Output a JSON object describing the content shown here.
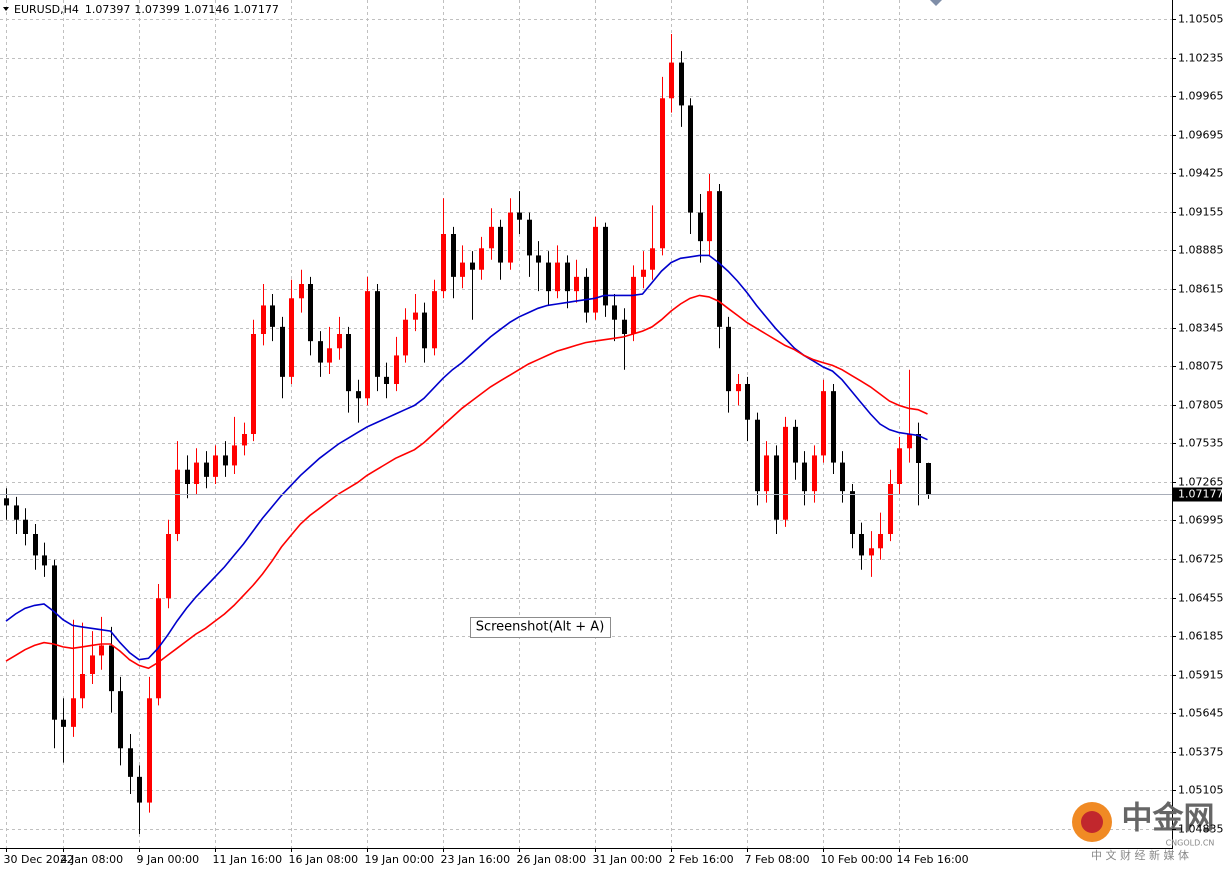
{
  "chart_data": {
    "type": "candlestick",
    "symbol": "EURUSD,H4",
    "categories": [
      "30 Dec 2022",
      null,
      null,
      null,
      null,
      null,
      "4 Jan 08:00",
      null,
      null,
      null,
      null,
      null,
      null,
      null,
      "9 Jan 00:00",
      null,
      null,
      null,
      null,
      null,
      null,
      null,
      "11 Jan 16:00",
      null,
      null,
      null,
      null,
      null,
      null,
      null,
      "16 Jan 08:00",
      null,
      null,
      null,
      null,
      null,
      null,
      null,
      "19 Jan 00:00",
      null,
      null,
      null,
      null,
      null,
      null,
      null,
      "23 Jan 16:00",
      null,
      null,
      null,
      null,
      null,
      null,
      null,
      "26 Jan 08:00",
      null,
      null,
      null,
      null,
      null,
      null,
      null,
      "31 Jan 00:00",
      null,
      null,
      null,
      null,
      null,
      null,
      null,
      "2 Feb 16:00",
      null,
      null,
      null,
      null,
      null,
      null,
      null,
      "7 Feb 08:00",
      null,
      null,
      null,
      null,
      null,
      null,
      null,
      "10 Feb 00:00",
      null,
      null,
      null,
      null,
      null,
      null,
      null,
      "14 Feb 16:00",
      null,
      null,
      null
    ],
    "open": [
      1.0715,
      1.071,
      1.07,
      1.069,
      1.0675,
      1.0668,
      1.056,
      1.0555,
      1.0575,
      1.0592,
      1.0605,
      1.0612,
      1.058,
      1.054,
      1.052,
      1.0502,
      1.0575,
      1.0645,
      1.069,
      1.0735,
      1.0725,
      1.074,
      1.073,
      1.0745,
      1.0738,
      1.0752,
      1.076,
      1.083,
      1.085,
      1.0835,
      1.08,
      1.0855,
      1.0865,
      1.0825,
      1.081,
      1.082,
      1.083,
      1.079,
      1.0785,
      1.086,
      1.08,
      1.0795,
      1.0815,
      1.084,
      1.0845,
      1.082,
      1.086,
      1.09,
      1.087,
      1.088,
      1.0875,
      1.089,
      1.0905,
      1.088,
      1.0915,
      1.091,
      1.0885,
      1.088,
      1.086,
      1.088,
      1.086,
      1.087,
      1.0845,
      1.0905,
      1.085,
      1.084,
      1.083,
      1.087,
      1.0875,
      1.089,
      1.0995,
      1.102,
      1.099,
      1.0915,
      1.0895,
      1.093,
      1.0835,
      1.079,
      1.0795,
      1.077,
      1.072,
      1.0745,
      1.07,
      1.0765,
      1.074,
      1.072,
      1.0745,
      1.079,
      1.074,
      1.072,
      1.069,
      1.0675,
      1.068,
      1.069,
      1.0725,
      1.075,
      1.076,
      1.07397
    ],
    "high": [
      1.0722,
      1.0716,
      1.0708,
      1.0697,
      1.0684,
      1.0672,
      1.0575,
      1.063,
      1.0628,
      1.0622,
      1.0632,
      1.0625,
      1.059,
      1.055,
      1.0528,
      1.059,
      1.0655,
      1.07,
      1.0755,
      1.0745,
      1.075,
      1.0748,
      1.0752,
      1.0755,
      1.0772,
      1.0768,
      1.084,
      1.0865,
      1.0858,
      1.0842,
      1.0868,
      1.0875,
      1.087,
      1.0832,
      1.0835,
      1.0842,
      1.0835,
      1.0798,
      1.087,
      1.0865,
      1.081,
      1.0828,
      1.0848,
      1.0858,
      1.0852,
      1.0868,
      1.0925,
      1.0905,
      1.0892,
      1.0888,
      1.0898,
      1.0918,
      1.091,
      1.0925,
      1.093,
      1.0915,
      1.0895,
      1.0888,
      1.0892,
      1.0885,
      1.0882,
      1.0876,
      1.0912,
      1.0908,
      1.0858,
      1.0848,
      1.0878,
      1.0888,
      1.092,
      1.101,
      1.104,
      1.1028,
      1.0995,
      1.0928,
      1.0942,
      1.0935,
      1.0842,
      1.0802,
      1.08,
      1.0775,
      1.0755,
      1.0752,
      1.0772,
      1.077,
      1.0748,
      1.0752,
      1.0798,
      1.0795,
      1.0748,
      1.0725,
      1.0698,
      1.0692,
      1.0705,
      1.0735,
      1.0758,
      1.0805,
      1.0768,
      1.07399
    ],
    "low": [
      1.07,
      1.069,
      1.0682,
      1.0665,
      1.066,
      1.054,
      1.053,
      1.0548,
      1.0568,
      1.0585,
      1.0595,
      1.0565,
      1.0528,
      1.0508,
      1.048,
      1.0495,
      1.057,
      1.0638,
      1.0685,
      1.0715,
      1.0718,
      1.0722,
      1.0725,
      1.073,
      1.0732,
      1.0745,
      1.0755,
      1.0822,
      1.0825,
      1.0785,
      1.0795,
      1.0845,
      1.0815,
      1.08,
      1.0802,
      1.0812,
      1.0775,
      1.0768,
      1.078,
      1.079,
      1.0785,
      1.079,
      1.081,
      1.0832,
      1.081,
      1.0815,
      1.0855,
      1.0855,
      1.0862,
      1.084,
      1.0868,
      1.0882,
      1.0868,
      1.0875,
      1.09,
      1.087,
      1.086,
      1.085,
      1.0855,
      1.0848,
      1.0852,
      1.0838,
      1.084,
      1.0842,
      1.0825,
      1.0805,
      1.0825,
      1.0862,
      1.0868,
      1.0885,
      1.0985,
      1.0975,
      1.09,
      1.088,
      1.0885,
      1.082,
      1.0775,
      1.078,
      1.0755,
      1.071,
      1.0712,
      1.069,
      1.0695,
      1.0728,
      1.071,
      1.0712,
      1.074,
      1.0732,
      1.0712,
      1.068,
      1.0665,
      1.066,
      1.0672,
      1.0685,
      1.0718,
      1.074,
      1.071,
      1.07146
    ],
    "close": [
      1.071,
      1.07,
      1.069,
      1.0675,
      1.0668,
      1.056,
      1.0555,
      1.0575,
      1.0592,
      1.0605,
      1.0612,
      1.058,
      1.054,
      1.052,
      1.0502,
      1.0575,
      1.0645,
      1.069,
      1.0735,
      1.0725,
      1.074,
      1.073,
      1.0745,
      1.0738,
      1.0752,
      1.076,
      1.083,
      1.085,
      1.0835,
      1.08,
      1.0855,
      1.0865,
      1.0825,
      1.081,
      1.082,
      1.083,
      1.079,
      1.0785,
      1.086,
      1.08,
      1.0795,
      1.0815,
      1.084,
      1.0845,
      1.082,
      1.086,
      1.09,
      1.087,
      1.088,
      1.0875,
      1.089,
      1.0905,
      1.088,
      1.0915,
      1.091,
      1.0885,
      1.088,
      1.086,
      1.088,
      1.086,
      1.087,
      1.0845,
      1.0905,
      1.085,
      1.084,
      1.083,
      1.087,
      1.0875,
      1.089,
      1.0995,
      1.102,
      1.099,
      1.0915,
      1.0895,
      1.093,
      1.0835,
      1.079,
      1.0795,
      1.077,
      1.072,
      1.0745,
      1.07,
      1.0765,
      1.074,
      1.072,
      1.0745,
      1.079,
      1.074,
      1.072,
      1.069,
      1.0675,
      1.068,
      1.069,
      1.0725,
      1.075,
      1.076,
      1.07397,
      1.07177
    ],
    "up_color": "#ff0000",
    "down_color": "#000000",
    "lines": [
      {
        "color": "#0000cc",
        "values": [
          1.0629,
          1.0634,
          1.0638,
          1.064,
          1.0641,
          1.0636,
          1.063,
          1.0626,
          1.0625,
          1.0624,
          1.0623,
          1.0622,
          1.0614,
          1.0607,
          1.0602,
          1.0603,
          1.061,
          1.0619,
          1.0629,
          1.0638,
          1.0646,
          1.0653,
          1.066,
          1.0667,
          1.0675,
          1.0683,
          1.0692,
          1.0701,
          1.0709,
          1.0717,
          1.0724,
          1.0731,
          1.0737,
          1.0743,
          1.0748,
          1.0753,
          1.0757,
          1.0761,
          1.0765,
          1.0768,
          1.0771,
          1.0774,
          1.0777,
          1.078,
          1.0785,
          1.0792,
          1.0799,
          1.0805,
          1.081,
          1.0816,
          1.0822,
          1.0828,
          1.0833,
          1.0838,
          1.0842,
          1.0845,
          1.0848,
          1.085,
          1.0851,
          1.0852,
          1.0853,
          1.0854,
          1.0855,
          1.0857,
          1.0857,
          1.0857,
          1.0857,
          1.0858,
          1.0866,
          1.0874,
          1.088,
          1.0883,
          1.0884,
          1.0885,
          1.0885,
          1.088,
          1.0874,
          1.0867,
          1.0859,
          1.085,
          1.0842,
          1.0834,
          1.0827,
          1.082,
          1.0815,
          1.0811,
          1.0807,
          1.0804,
          1.0798,
          1.079,
          1.0782,
          1.0774,
          1.0767,
          1.0763,
          1.0761,
          1.076,
          1.0759,
          1.0756
        ]
      },
      {
        "color": "#ff0000",
        "values": [
          1.0601,
          1.0605,
          1.0609,
          1.0612,
          1.0614,
          1.0613,
          1.0611,
          1.061,
          1.0611,
          1.0612,
          1.0613,
          1.0613,
          1.0608,
          1.0602,
          1.0598,
          1.0596,
          1.06,
          1.0605,
          1.061,
          1.0615,
          1.062,
          1.0624,
          1.0629,
          1.0634,
          1.064,
          1.0647,
          1.0654,
          1.0662,
          1.0671,
          1.0681,
          1.0689,
          1.0697,
          1.0703,
          1.0708,
          1.0713,
          1.0718,
          1.0722,
          1.0726,
          1.0731,
          1.0735,
          1.0739,
          1.0743,
          1.0746,
          1.0749,
          1.0754,
          1.076,
          1.0766,
          1.0772,
          1.0778,
          1.0783,
          1.0788,
          1.0793,
          1.0797,
          1.0801,
          1.0805,
          1.0809,
          1.0812,
          1.0815,
          1.0818,
          1.082,
          1.0822,
          1.0824,
          1.0825,
          1.0826,
          1.0827,
          1.0828,
          1.083,
          1.0832,
          1.0835,
          1.084,
          1.0846,
          1.0851,
          1.0855,
          1.0857,
          1.0856,
          1.0853,
          1.0848,
          1.0843,
          1.0838,
          1.0834,
          1.083,
          1.0826,
          1.0822,
          1.0819,
          1.0815,
          1.0812,
          1.081,
          1.0808,
          1.0805,
          1.0801,
          1.0797,
          1.0793,
          1.0788,
          1.0783,
          1.078,
          1.0778,
          1.0777,
          1.0774
        ]
      }
    ],
    "ylim": [
      1.04702,
      1.10638
    ],
    "yticks": [
      1.10505,
      1.10235,
      1.09965,
      1.09695,
      1.09425,
      1.09155,
      1.08885,
      1.08615,
      1.08345,
      1.08075,
      1.07805,
      1.07535,
      1.07265,
      1.06995,
      1.06725,
      1.06455,
      1.06185,
      1.05915,
      1.05645,
      1.05375,
      1.05105,
      1.04835
    ],
    "grid": true,
    "tooltip": "Screenshot(Alt + A)",
    "watermark": {
      "logo": "中金网",
      "site": "CNGOLD.CN",
      "slogan": "中 文 财 经 新 媒 体"
    }
  }
}
